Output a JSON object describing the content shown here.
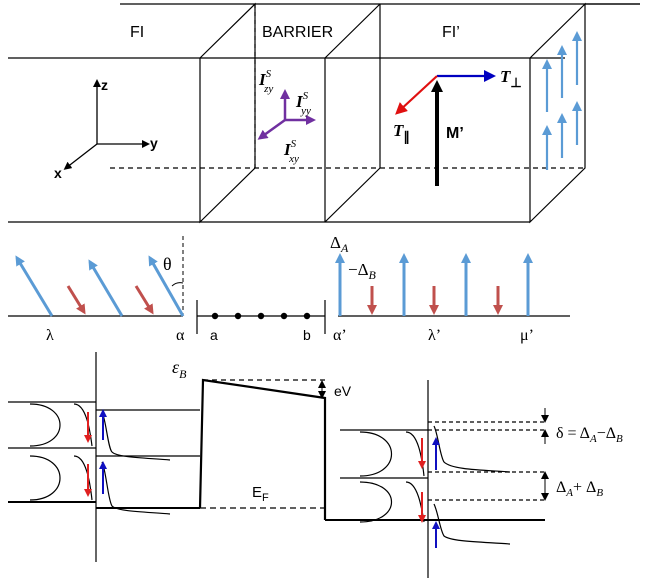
{
  "regions": {
    "fi": "FI",
    "barrier": "BARRIER",
    "fi_prime": "FI’"
  },
  "axes": {
    "z": "z",
    "y": "y",
    "x": "x"
  },
  "spin_currents": {
    "zy_base": "I",
    "zy_sup": "S",
    "zy_sub": "zy",
    "yy_base": "I",
    "yy_sup": "S",
    "yy_sub": "yy",
    "xy_base": "I",
    "xy_sup": "S",
    "xy_sub": "xy"
  },
  "torques": {
    "perp_base": "T",
    "perp_sub": "⊥",
    "par_base": "T",
    "par_sub": "∥",
    "magnetization": "M’"
  },
  "chain": {
    "theta": "θ",
    "delta_a": "Δ",
    "delta_a_sub": "A",
    "minus_delta_b": "−Δ",
    "minus_delta_b_sub": "B",
    "sites": [
      "λ",
      "α",
      "a",
      "b",
      "α’",
      "λ’",
      "μ’"
    ]
  },
  "bands": {
    "eps_b": "ε",
    "eps_b_sub": "B",
    "ev": "eV",
    "ef": "E",
    "ef_sub": "F",
    "delta_eq": "δ = Δ",
    "delta_eq_sub1": "A",
    "delta_eq_mid": "−Δ",
    "delta_eq_sub2": "B",
    "sum": "Δ",
    "sum_sub1": "A",
    "sum_mid": "+ Δ",
    "sum_sub2": "B"
  },
  "colors": {
    "spin_blue": "#5b9bd5",
    "spin_red": "#c0504d",
    "purple": "#7030a0",
    "torque_blue": "#0000c0",
    "torque_red": "#e01010",
    "arrow_blue": "#1010c0",
    "arrow_red": "#e02020"
  }
}
